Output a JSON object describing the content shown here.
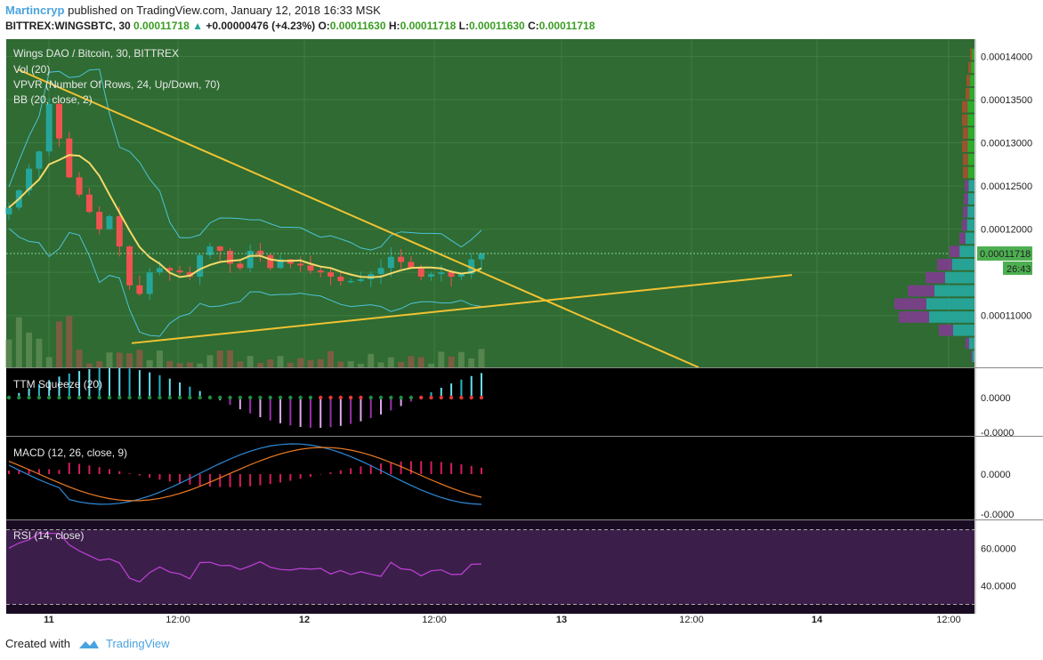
{
  "header": {
    "user": "Martincryp",
    "published": "published on TradingView.com, January 12, 2018 16:33 MSK",
    "symbol": "BITTREX:WINGSBTC, 30",
    "last": "0.00011718",
    "change": "+0.00000476 (+4.23%)",
    "o_label": "O:",
    "o": "0.00011630",
    "h_label": "H:",
    "h": "0.00011718",
    "l_label": "L:",
    "l": "0.00011630",
    "c_label": "C:",
    "c": "0.00011718"
  },
  "footer": {
    "created_with": "Created with",
    "brand": "TradingView"
  },
  "colors": {
    "up": "#26a69a",
    "down": "#ef5350",
    "bb_basis": "#f5d96a",
    "bb_band": "#4dc3d8",
    "trendline": "#f2c233",
    "main_bg": "#2f6b32",
    "rsi_bg": "#3b1f4a"
  },
  "chart_data": [
    {
      "type": "candlestick",
      "title": "Wings DAO / Bitcoin, 30, BITTREX",
      "indicators": [
        "Vol (20)",
        "VPVR (Number Of Rows, 24, Up/Down, 70)",
        "BB (20, close, 2)"
      ],
      "x_ticks": [
        "11",
        "12:00",
        "12",
        "12:00",
        "13",
        "12:00",
        "14",
        "12:00"
      ],
      "y_ticks": [
        "0.00014000",
        "0.00013500",
        "0.00013000",
        "0.00012500",
        "0.00012000",
        "0.00011000"
      ],
      "ylim": [
        0.000104,
        0.000142
      ],
      "last_price": "0.00011718",
      "countdown": "26:43",
      "close_series": [
        0.0001225,
        0.0001245,
        0.000127,
        0.000129,
        0.0001345,
        0.0001305,
        0.000126,
        0.000124,
        0.000122,
        0.00012,
        0.0001215,
        0.000118,
        0.0001135,
        0.0001125,
        0.000115,
        0.0001155,
        0.0001152,
        0.000115,
        0.0001145,
        0.000117,
        0.000118,
        0.0001175,
        0.000116,
        0.0001155,
        0.0001175,
        0.000117,
        0.0001155,
        0.0001165,
        0.000116,
        0.0001158,
        0.0001152,
        0.000115,
        0.0001145,
        0.000114,
        0.000114,
        0.0001142,
        0.0001148,
        0.0001155,
        0.0001168,
        0.0001162,
        0.0001155,
        0.0001145,
        0.0001148,
        0.000115,
        0.0001145,
        0.0001148,
        0.0001165,
        0.00011718
      ]
    },
    {
      "type": "histogram",
      "title": "TTM Squeeze (20)",
      "y_ticks": [
        "0.0000",
        "-0.0000"
      ]
    },
    {
      "type": "line",
      "title": "MACD (12, 26, close, 9)",
      "y_ticks": [
        "0.0000",
        "-0.0000"
      ]
    },
    {
      "type": "line",
      "title": "RSI (14, close)",
      "y_ticks": [
        "60.0000",
        "40.0000"
      ],
      "ylim": [
        25,
        75
      ]
    }
  ]
}
